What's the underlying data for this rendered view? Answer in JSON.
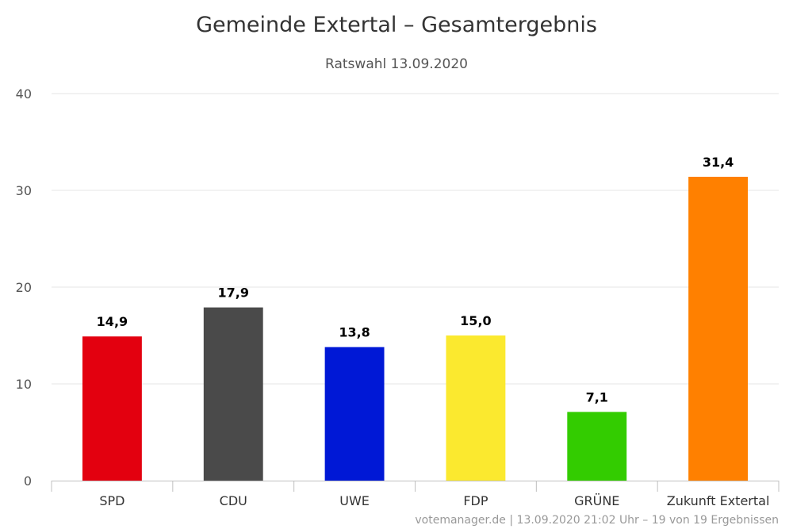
{
  "chart_data": {
    "type": "bar",
    "title": "Gemeinde Extertal – Gesamtergebnis",
    "subtitle": "Ratswahl 13.09.2020",
    "xlabel": "",
    "ylabel": "",
    "ylim": [
      0,
      40
    ],
    "yticks": [
      0,
      10,
      20,
      30,
      40
    ],
    "grid": true,
    "legend": "none",
    "categories": [
      "SPD",
      "CDU",
      "UWE",
      "FDP",
      "GRÜNE",
      "Zukunft Extertal"
    ],
    "values": [
      14.9,
      17.9,
      13.8,
      15.0,
      7.1,
      31.4
    ],
    "data_labels": [
      "14,9",
      "17,9",
      "13,8",
      "15,0",
      "7,1",
      "31,4"
    ],
    "colors": [
      "#e3000f",
      "#4a4a4a",
      "#0018d6",
      "#fbe92f",
      "#33cc00",
      "#ff8000"
    ],
    "credits": "votemanager.de | 13.09.2020 21:02 Uhr – 19 von 19 Ergebnissen"
  }
}
